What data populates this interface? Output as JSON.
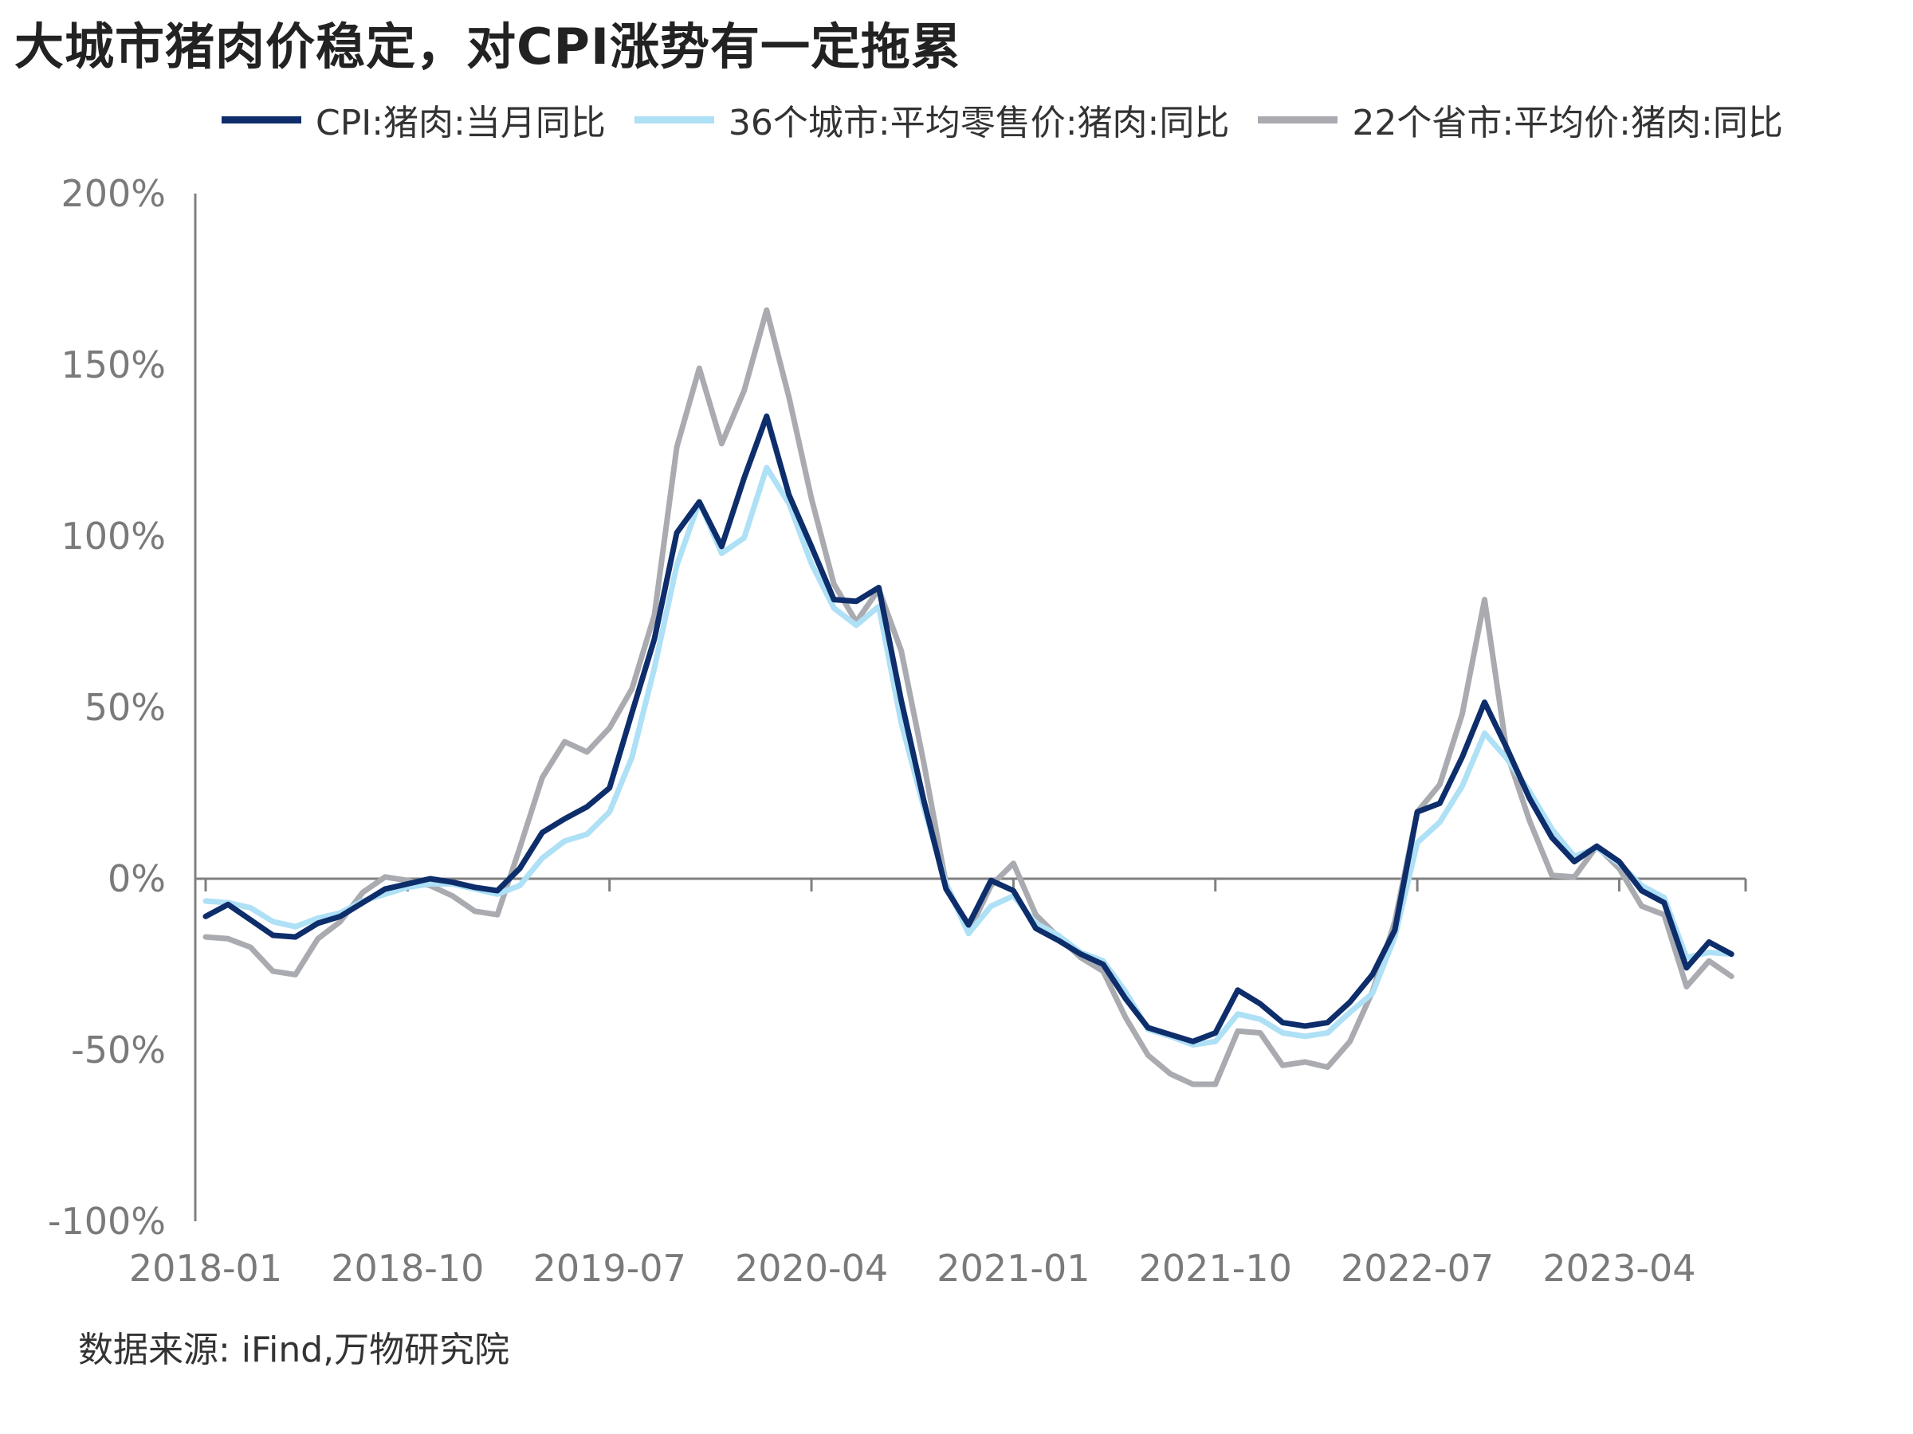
{
  "title": "大城市猪肉价稳定，对CPI涨势有一定拖累",
  "source": "数据来源: iFind,万物研究院",
  "chart_data": {
    "type": "line",
    "title": "大城市猪肉价稳定，对CPI涨势有一定拖累",
    "xlabel": "",
    "ylabel": "",
    "ylim": [
      -100,
      200
    ],
    "y_ticks": [
      "200%",
      "150%",
      "100%",
      "50%",
      "0%",
      "-50%",
      "-100%"
    ],
    "y_tick_values": [
      200,
      150,
      100,
      50,
      0,
      -50,
      -100
    ],
    "x_ticks": [
      "2018-01",
      "2018-10",
      "2019-07",
      "2020-04",
      "2021-01",
      "2021-10",
      "2022-07",
      "2023-04"
    ],
    "x_tick_index": [
      0,
      9,
      18,
      27,
      36,
      45,
      54,
      63
    ],
    "grid": false,
    "legend_position": "top",
    "start_month": "2018-01",
    "series": [
      {
        "name": "CPI:猪肉:当月同比",
        "color": "#0d2d6b",
        "values": [
          -11,
          -7.5,
          -12,
          -16.5,
          -17,
          -13,
          -11,
          -7,
          -3,
          -1.5,
          0,
          -1,
          -2.5,
          -3.5,
          3,
          13.5,
          17.5,
          21,
          26.5,
          48.5,
          70,
          101,
          110,
          97,
          117,
          135,
          112,
          97,
          81.5,
          81,
          85,
          52,
          23,
          -3,
          -13.5,
          -0.5,
          -3.5,
          -14.5,
          -18,
          -22,
          -25,
          -35,
          -43.5,
          -45.5,
          -47.5,
          -45,
          -32.5,
          -36.5,
          -42,
          -43,
          -42,
          -36,
          -28,
          -15,
          19.5,
          22,
          35.5,
          51.5,
          38,
          23.5,
          12,
          5,
          9.5,
          5,
          -3.5,
          -7,
          -26,
          -18.5,
          -22
        ]
      },
      {
        "name": "36个城市:平均零售价:猪肉:同比",
        "color": "#aee0f6",
        "values": [
          -6.5,
          -7,
          -8.5,
          -12.5,
          -14,
          -11.5,
          -10,
          -6.5,
          -4.5,
          -2.5,
          -1.5,
          -1.5,
          -3,
          -4.5,
          -2,
          6,
          11,
          13,
          19.5,
          35.5,
          61.5,
          91.5,
          110,
          95,
          99.5,
          120,
          109.5,
          92,
          79,
          74,
          79.5,
          45.5,
          21,
          -1.5,
          -16,
          -8,
          -5,
          -13,
          -16.5,
          -21.5,
          -24,
          -33,
          -44,
          -46,
          -48.5,
          -47.5,
          -39.5,
          -41,
          -45,
          -46,
          -45,
          -39,
          -33.5,
          -17,
          10.5,
          16.5,
          27,
          42.5,
          35,
          25.5,
          14.5,
          6.5,
          9,
          4.5,
          -2,
          -5.5,
          -23,
          -21.5,
          -22
        ]
      },
      {
        "name": "22个省市:平均价:猪肉:同比",
        "color": "#a9abb0",
        "values": [
          -17,
          -17.5,
          -20,
          -27,
          -28,
          -17.5,
          -12.5,
          -4,
          0.5,
          -0.5,
          -2,
          -5,
          -9.5,
          -10.5,
          9,
          29.5,
          40,
          37,
          44,
          55.5,
          77,
          126,
          149,
          127,
          142.5,
          166,
          140.5,
          111,
          86,
          75,
          84.5,
          66.5,
          34,
          -1.5,
          -15.5,
          -2,
          4.5,
          -10.5,
          -17,
          -23,
          -27,
          -40.5,
          -51.5,
          -57,
          -60,
          -60,
          -44.5,
          -45,
          -54.5,
          -53.5,
          -55,
          -47.5,
          -33,
          -12.5,
          19.5,
          27.5,
          48,
          81.5,
          36.5,
          17,
          1,
          0.5,
          9.5,
          3,
          -8,
          -10.5,
          -31.5,
          -24,
          -28.5
        ]
      }
    ]
  }
}
